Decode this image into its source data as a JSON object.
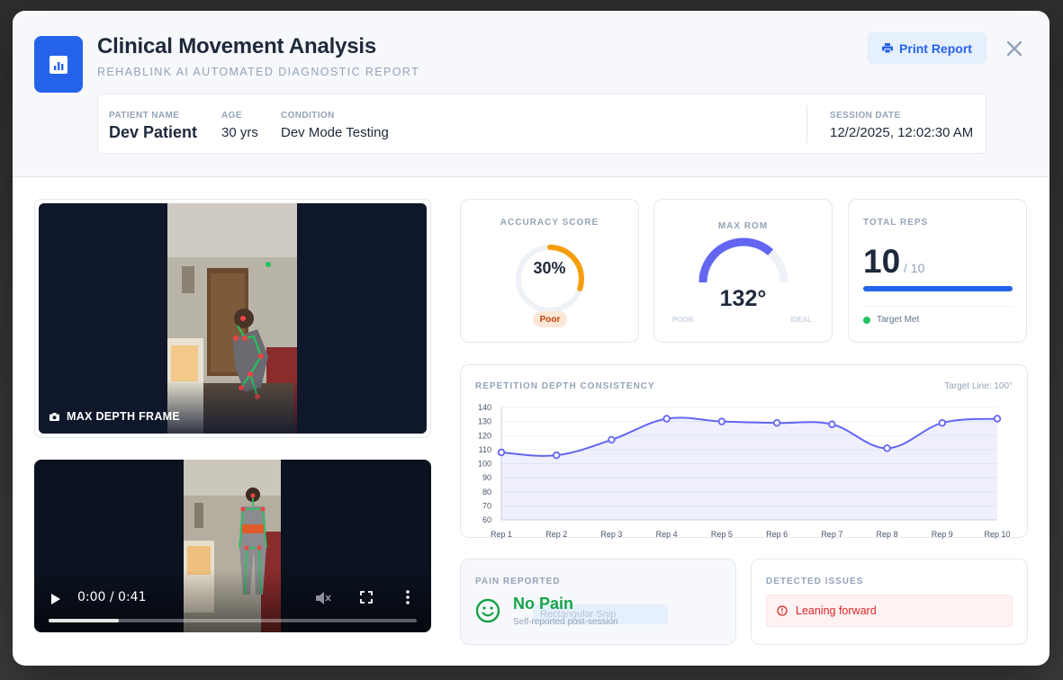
{
  "header": {
    "title": "Clinical Movement Analysis",
    "subtitle": "RehabLink AI Automated Diagnostic Report",
    "print_label": "Print Report"
  },
  "patient": {
    "name_label": "Patient Name",
    "name": "Dev Patient",
    "age_label": "Age",
    "age": "30 yrs",
    "condition_label": "Condition",
    "condition": "Dev Mode Testing",
    "session_label": "Session Date",
    "session_date": "12/2/2025, 12:02:30 AM"
  },
  "frame": {
    "label": "MAX DEPTH FRAME"
  },
  "video": {
    "time": "0:00 / 0:41",
    "buffered_fraction": 0.19
  },
  "accuracy": {
    "title": "Accuracy Score",
    "value_text": "30%",
    "value": 30,
    "badge": "Poor",
    "color": "#f59e0b"
  },
  "rom": {
    "title": "Max ROM",
    "value_text": "132°",
    "value": 132,
    "poor_label": "POOR",
    "ideal_label": "IDEAL",
    "color": "#6366f1"
  },
  "reps": {
    "title": "Total Reps",
    "value": "10",
    "target": "/ 10",
    "fraction": 1.0,
    "status": "Target Met"
  },
  "chart": {
    "title": "Repetition Depth Consistency",
    "target_text": "Target Line: 100°"
  },
  "chart_data": {
    "type": "area",
    "title": "Repetition Depth Consistency",
    "categories": [
      "Rep 1",
      "Rep 2",
      "Rep 3",
      "Rep 4",
      "Rep 5",
      "Rep 6",
      "Rep 7",
      "Rep 8",
      "Rep 9",
      "Rep 10"
    ],
    "values": [
      108,
      106,
      117,
      132,
      130,
      129,
      128,
      111,
      129,
      132
    ],
    "yticks": [
      140,
      130,
      120,
      110,
      100,
      90,
      80,
      70,
      60
    ],
    "ylim": [
      60,
      140
    ],
    "grid": true,
    "color": "#6366f1"
  },
  "pain": {
    "title": "Pain Reported",
    "value": "No Pain",
    "sub": "Self-reported post-session",
    "ghost_text": "Rectangular Snip"
  },
  "issues": {
    "title": "Detected Issues",
    "items": [
      "Leaning forward"
    ]
  },
  "icons": {
    "app": "bar-chart-icon",
    "print": "printer-icon",
    "close": "close-icon",
    "camera": "camera-icon",
    "smile": "smile-icon",
    "alert": "alert-circle-icon"
  }
}
